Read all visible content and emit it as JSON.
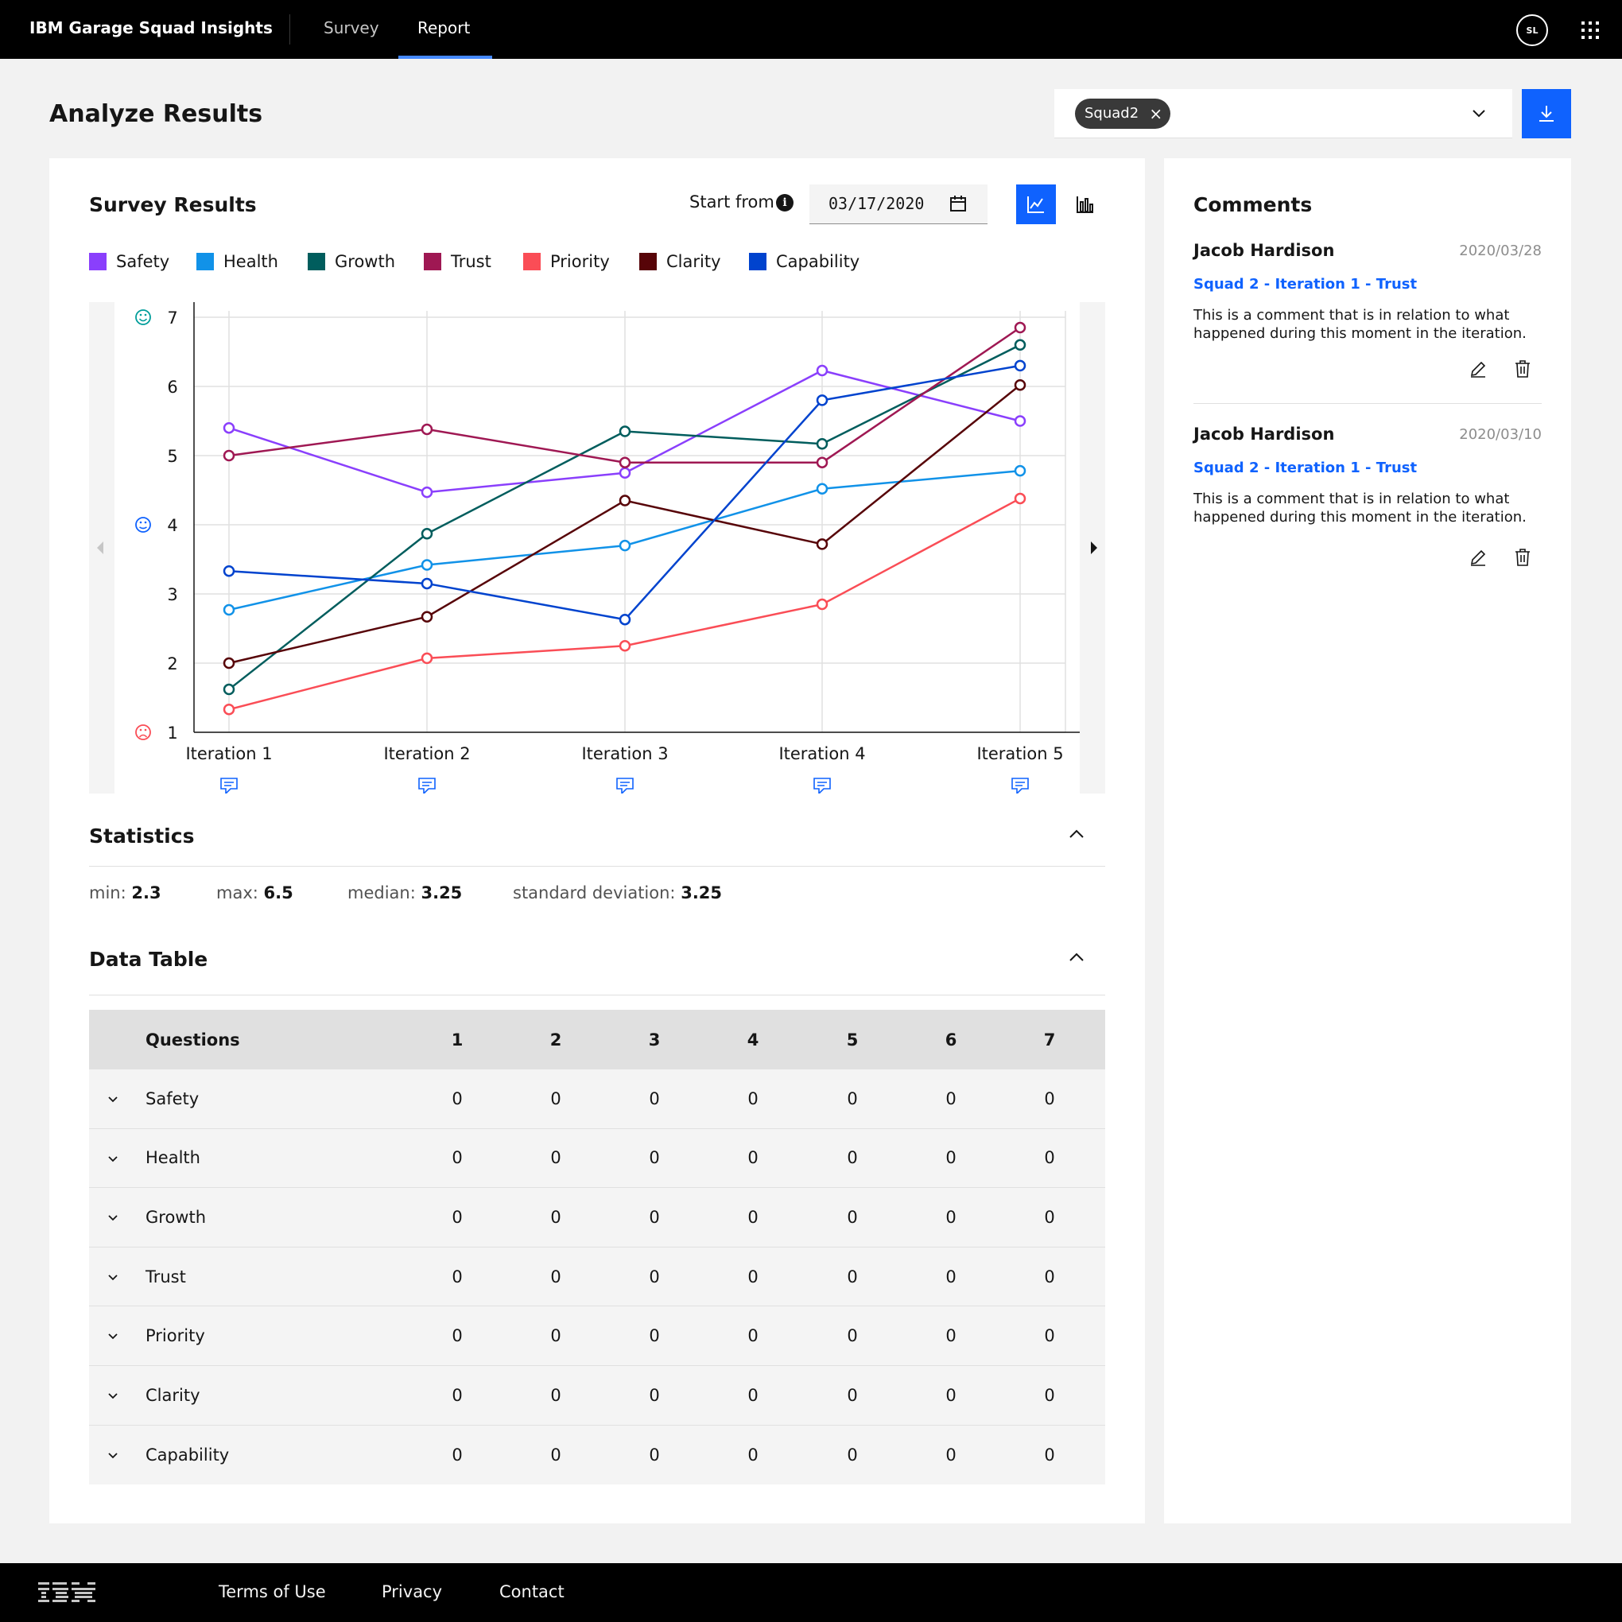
{
  "header": {
    "brand": "IBM Garage Squad Insights",
    "nav": [
      "Survey",
      "Report"
    ],
    "avatar": "SL"
  },
  "page": {
    "title": "Analyze Results",
    "filter_tag": "Squad2"
  },
  "survey": {
    "title": "Survey Results",
    "start_label": "Start from",
    "date": "03/17/2020"
  },
  "chart_data": {
    "type": "line",
    "categories": [
      "Iteration 1",
      "Iteration 2",
      "Iteration 3",
      "Iteration 4",
      "Iteration 5"
    ],
    "ylim": [
      1,
      7
    ],
    "yticks": [
      "1",
      "2",
      "3",
      "4",
      "5",
      "6",
      "7"
    ],
    "grid": true,
    "legend_position": "top",
    "series": [
      {
        "name": "Safety",
        "color": "#8a3ffc",
        "values": [
          5.4,
          4.47,
          4.75,
          6.23,
          5.5
        ]
      },
      {
        "name": "Health",
        "color": "#1192e8",
        "values": [
          2.77,
          3.42,
          3.7,
          4.52,
          4.78
        ]
      },
      {
        "name": "Growth",
        "color": "#005d5d",
        "values": [
          1.62,
          3.87,
          5.35,
          5.17,
          6.6
        ]
      },
      {
        "name": "Trust",
        "color": "#9f1853",
        "values": [
          5.0,
          5.38,
          4.9,
          4.9,
          6.85
        ]
      },
      {
        "name": "Priority",
        "color": "#fa4d56",
        "values": [
          1.33,
          2.07,
          2.25,
          2.85,
          4.38
        ]
      },
      {
        "name": "Clarity",
        "color": "#570408",
        "values": [
          2.0,
          2.67,
          4.35,
          3.72,
          6.02
        ]
      },
      {
        "name": "Capability",
        "color": "#0043ce",
        "values": [
          3.33,
          3.15,
          2.63,
          5.8,
          6.3
        ]
      }
    ]
  },
  "statistics": {
    "title": "Statistics",
    "min_label": "min:",
    "min": "2.3",
    "max_label": "max:",
    "max": "6.5",
    "median_label": "median:",
    "median": "3.25",
    "sd_label": "standard deviation:",
    "sd": "3.25"
  },
  "data_table": {
    "title": "Data Table",
    "headers": [
      "Questions",
      "1",
      "2",
      "3",
      "4",
      "5",
      "6",
      "7"
    ],
    "rows": [
      {
        "label": "Safety",
        "values": [
          "0",
          "0",
          "0",
          "0",
          "0",
          "0",
          "0"
        ]
      },
      {
        "label": "Health",
        "values": [
          "0",
          "0",
          "0",
          "0",
          "0",
          "0",
          "0"
        ]
      },
      {
        "label": "Growth",
        "values": [
          "0",
          "0",
          "0",
          "0",
          "0",
          "0",
          "0"
        ]
      },
      {
        "label": "Trust",
        "values": [
          "0",
          "0",
          "0",
          "0",
          "0",
          "0",
          "0"
        ]
      },
      {
        "label": "Priority",
        "values": [
          "0",
          "0",
          "0",
          "0",
          "0",
          "0",
          "0"
        ]
      },
      {
        "label": "Clarity",
        "values": [
          "0",
          "0",
          "0",
          "0",
          "0",
          "0",
          "0"
        ]
      },
      {
        "label": "Capability",
        "values": [
          "0",
          "0",
          "0",
          "0",
          "0",
          "0",
          "0"
        ]
      }
    ]
  },
  "comments": {
    "title": "Comments",
    "items": [
      {
        "author": "Jacob Hardison",
        "date": "2020/03/28",
        "link": "Squad 2 - Iteration 1 -  Trust",
        "text": "This is a comment that is in relation to what happened during this moment in the iteration."
      },
      {
        "author": "Jacob Hardison",
        "date": "2020/03/10",
        "link": "Squad 2 - Iteration 1 -  Trust",
        "text": "This is a comment that is in relation to what happened during this moment in the iteration."
      }
    ]
  },
  "footer": {
    "links": [
      "Terms of Use",
      "Privacy",
      "Contact"
    ]
  }
}
